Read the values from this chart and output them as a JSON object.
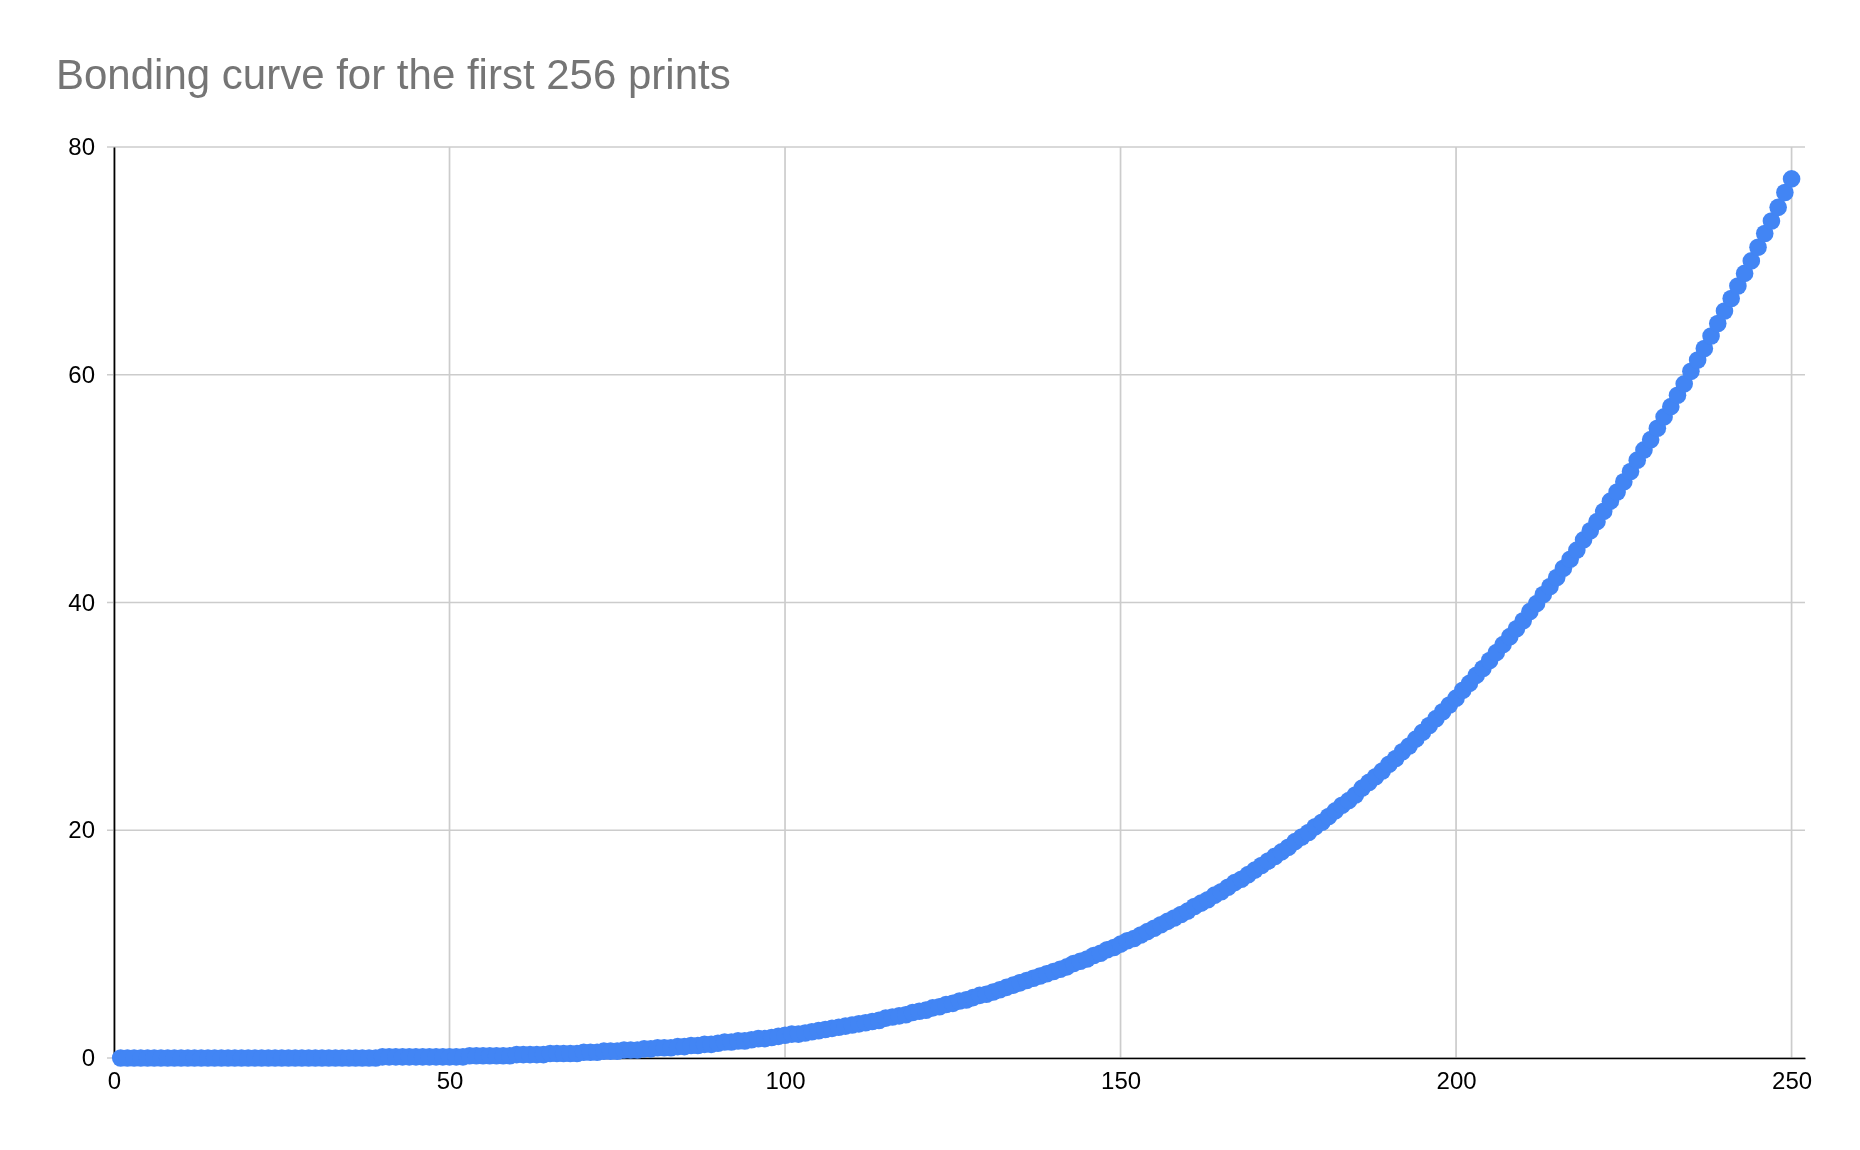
{
  "chart_data": {
    "type": "scatter",
    "title": "Bonding curve for the first 256 prints",
    "x": [
      1,
      2,
      3,
      4,
      5,
      6,
      7,
      8,
      9,
      10,
      11,
      12,
      13,
      14,
      15,
      16,
      17,
      18,
      19,
      20,
      21,
      22,
      23,
      24,
      25,
      26,
      27,
      28,
      29,
      30,
      31,
      32,
      33,
      34,
      35,
      36,
      37,
      38,
      39,
      40,
      41,
      42,
      43,
      44,
      45,
      46,
      47,
      48,
      49,
      50,
      51,
      52,
      53,
      54,
      55,
      56,
      57,
      58,
      59,
      60,
      61,
      62,
      63,
      64,
      65,
      66,
      67,
      68,
      69,
      70,
      71,
      72,
      73,
      74,
      75,
      76,
      77,
      78,
      79,
      80,
      81,
      82,
      83,
      84,
      85,
      86,
      87,
      88,
      89,
      90,
      91,
      92,
      93,
      94,
      95,
      96,
      97,
      98,
      99,
      100,
      101,
      102,
      103,
      104,
      105,
      106,
      107,
      108,
      109,
      110,
      111,
      112,
      113,
      114,
      115,
      116,
      117,
      118,
      119,
      120,
      121,
      122,
      123,
      124,
      125,
      126,
      127,
      128,
      129,
      130,
      131,
      132,
      133,
      134,
      135,
      136,
      137,
      138,
      139,
      140,
      141,
      142,
      143,
      144,
      145,
      146,
      147,
      148,
      149,
      150,
      151,
      152,
      153,
      154,
      155,
      156,
      157,
      158,
      159,
      160,
      161,
      162,
      163,
      164,
      165,
      166,
      167,
      168,
      169,
      170,
      171,
      172,
      173,
      174,
      175,
      176,
      177,
      178,
      179,
      180,
      181,
      182,
      183,
      184,
      185,
      186,
      187,
      188,
      189,
      190,
      191,
      192,
      193,
      194,
      195,
      196,
      197,
      198,
      199,
      200,
      201,
      202,
      203,
      204,
      205,
      206,
      207,
      208,
      209,
      210,
      211,
      212,
      213,
      214,
      215,
      216,
      217,
      218,
      219,
      220,
      221,
      222,
      223,
      224,
      225,
      226,
      227,
      228,
      229,
      230,
      231,
      232,
      233,
      234,
      235,
      236,
      237,
      238,
      239,
      240,
      241,
      242,
      243,
      244,
      245,
      246,
      247,
      248,
      249,
      250
    ],
    "values": [
      0,
      0,
      0,
      0,
      0,
      0,
      0,
      0,
      0,
      0,
      0,
      0,
      0,
      0,
      0,
      0,
      0,
      0,
      0,
      0,
      0,
      0,
      0,
      0,
      0,
      0,
      0,
      0,
      0,
      0,
      0,
      0,
      0,
      0,
      0,
      0,
      0,
      0,
      0,
      0.1,
      0.1,
      0.1,
      0.1,
      0.1,
      0.1,
      0.1,
      0.1,
      0.1,
      0.1,
      0.1,
      0.1,
      0.1,
      0.2,
      0.2,
      0.2,
      0.2,
      0.2,
      0.2,
      0.2,
      0.3,
      0.3,
      0.3,
      0.3,
      0.3,
      0.4,
      0.4,
      0.4,
      0.4,
      0.4,
      0.5,
      0.5,
      0.5,
      0.6,
      0.6,
      0.6,
      0.7,
      0.7,
      0.7,
      0.8,
      0.8,
      0.9,
      0.9,
      0.9,
      1.0,
      1.0,
      1.1,
      1.1,
      1.2,
      1.2,
      1.3,
      1.4,
      1.4,
      1.5,
      1.5,
      1.6,
      1.7,
      1.7,
      1.8,
      1.9,
      2.0,
      2.1,
      2.1,
      2.2,
      2.3,
      2.4,
      2.5,
      2.6,
      2.7,
      2.8,
      2.9,
      3.0,
      3.1,
      3.2,
      3.3,
      3.5,
      3.6,
      3.7,
      3.8,
      4.0,
      4.1,
      4.2,
      4.4,
      4.5,
      4.7,
      4.8,
      5.0,
      5.1,
      5.3,
      5.5,
      5.6,
      5.8,
      6.0,
      6.2,
      6.4,
      6.6,
      6.8,
      7.0,
      7.2,
      7.4,
      7.6,
      7.8,
      8.0,
      8.3,
      8.5,
      8.7,
      9.0,
      9.2,
      9.5,
      9.7,
      10.0,
      10.3,
      10.5,
      10.8,
      11.1,
      11.4,
      11.7,
      12.0,
      12.3,
      12.6,
      12.9,
      13.3,
      13.6,
      13.9,
      14.3,
      14.6,
      15.0,
      15.4,
      15.7,
      16.1,
      16.5,
      16.9,
      17.3,
      17.7,
      18.1,
      18.5,
      19.0,
      19.4,
      19.8,
      20.3,
      20.7,
      21.2,
      21.7,
      22.2,
      22.6,
      23.1,
      23.7,
      24.2,
      24.7,
      25.2,
      25.8,
      26.3,
      26.9,
      27.4,
      28.0,
      28.6,
      29.2,
      29.8,
      30.4,
      31.0,
      31.6,
      32.3,
      32.9,
      33.6,
      34.2,
      34.9,
      35.6,
      36.3,
      37.0,
      37.7,
      38.4,
      39.2,
      39.9,
      40.7,
      41.4,
      42.2,
      43.0,
      43.8,
      44.6,
      45.5,
      46.3,
      47.1,
      48.0,
      48.9,
      49.7,
      50.6,
      51.5,
      52.5,
      53.4,
      54.3,
      55.3,
      56.3,
      57.2,
      58.2,
      59.2,
      60.3,
      61.3,
      62.3,
      63.4,
      64.5,
      65.6,
      66.7,
      67.8,
      68.9,
      70.0,
      71.2,
      72.4,
      73.5,
      74.7,
      76.0,
      77.2
    ],
    "color": "#4285f4",
    "marker": "circle",
    "xlim": [
      0,
      252
    ],
    "xticks": [
      0,
      50,
      100,
      150,
      200,
      250
    ],
    "ylim": [
      0,
      80
    ],
    "yticks": [
      0,
      20,
      40,
      60,
      80
    ],
    "grid": true
  }
}
